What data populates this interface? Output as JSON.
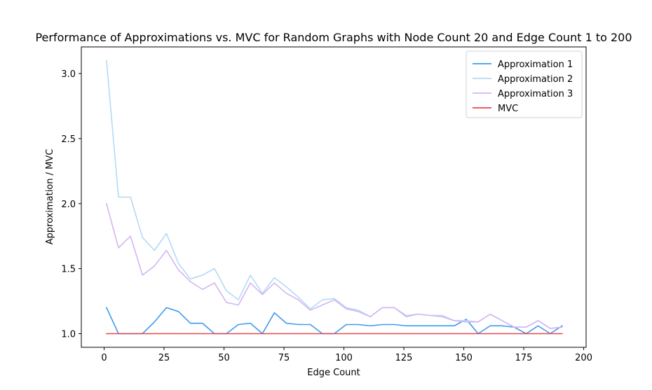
{
  "chart_data": {
    "type": "line",
    "title": "Performance of Approximations vs. MVC for Random Graphs with Node Count 20 and Edge Count 1 to 200",
    "xlabel": "Edge Count",
    "ylabel": "Approximation / MVC",
    "xlim": [
      -9.5,
      201
    ],
    "ylim": [
      0.895,
      3.205
    ],
    "xticks": [
      0,
      25,
      50,
      75,
      100,
      125,
      150,
      175,
      200
    ],
    "yticks": [
      1.0,
      1.5,
      2.0,
      2.5,
      3.0
    ],
    "xtick_labels": [
      "0",
      "25",
      "50",
      "75",
      "100",
      "125",
      "150",
      "175",
      "200"
    ],
    "ytick_labels": [
      "1.0",
      "1.5",
      "2.0",
      "2.5",
      "3.0"
    ],
    "legend_position": "top-right",
    "grid": false,
    "x": [
      1,
      6,
      11,
      16,
      21,
      26,
      31,
      36,
      41,
      46,
      51,
      56,
      61,
      66,
      71,
      76,
      81,
      86,
      91,
      96,
      101,
      106,
      111,
      116,
      121,
      126,
      131,
      136,
      141,
      146,
      151,
      156,
      161,
      166,
      171,
      176,
      181,
      186,
      191
    ],
    "series": [
      {
        "name": "Approximation 1",
        "color": "#3d9bef",
        "values": [
          1.2,
          1.0,
          1.0,
          1.0,
          1.09,
          1.2,
          1.17,
          1.08,
          1.08,
          1.0,
          1.0,
          1.07,
          1.08,
          1.0,
          1.16,
          1.08,
          1.07,
          1.07,
          1.0,
          1.0,
          1.07,
          1.07,
          1.06,
          1.07,
          1.07,
          1.06,
          1.06,
          1.06,
          1.06,
          1.06,
          1.11,
          1.0,
          1.06,
          1.06,
          1.05,
          1.0,
          1.06,
          1.0,
          1.06
        ]
      },
      {
        "name": "Approximation 2",
        "color": "#b3daf5",
        "values": [
          3.1,
          2.05,
          2.05,
          1.74,
          1.64,
          1.77,
          1.54,
          1.42,
          1.45,
          1.5,
          1.33,
          1.26,
          1.45,
          1.31,
          1.43,
          1.36,
          1.28,
          1.19,
          1.26,
          1.27,
          1.2,
          1.18,
          1.13,
          1.2,
          1.2,
          1.14,
          1.15,
          1.14,
          1.14,
          1.1,
          1.1,
          1.09,
          1.15,
          1.1,
          1.05,
          1.05,
          1.1,
          1.04,
          1.05
        ]
      },
      {
        "name": "Approximation 3",
        "color": "#d4b5f2",
        "values": [
          2.0,
          1.66,
          1.75,
          1.45,
          1.52,
          1.64,
          1.49,
          1.4,
          1.34,
          1.39,
          1.24,
          1.22,
          1.39,
          1.3,
          1.39,
          1.31,
          1.26,
          1.18,
          1.22,
          1.26,
          1.19,
          1.17,
          1.13,
          1.2,
          1.2,
          1.13,
          1.15,
          1.14,
          1.13,
          1.1,
          1.09,
          1.09,
          1.15,
          1.1,
          1.05,
          1.05,
          1.1,
          1.04,
          1.05
        ]
      },
      {
        "name": "MVC",
        "color": "#e8474e",
        "values": [
          1.0,
          1.0,
          1.0,
          1.0,
          1.0,
          1.0,
          1.0,
          1.0,
          1.0,
          1.0,
          1.0,
          1.0,
          1.0,
          1.0,
          1.0,
          1.0,
          1.0,
          1.0,
          1.0,
          1.0,
          1.0,
          1.0,
          1.0,
          1.0,
          1.0,
          1.0,
          1.0,
          1.0,
          1.0,
          1.0,
          1.0,
          1.0,
          1.0,
          1.0,
          1.0,
          1.0,
          1.0,
          1.0,
          1.0
        ]
      }
    ]
  }
}
